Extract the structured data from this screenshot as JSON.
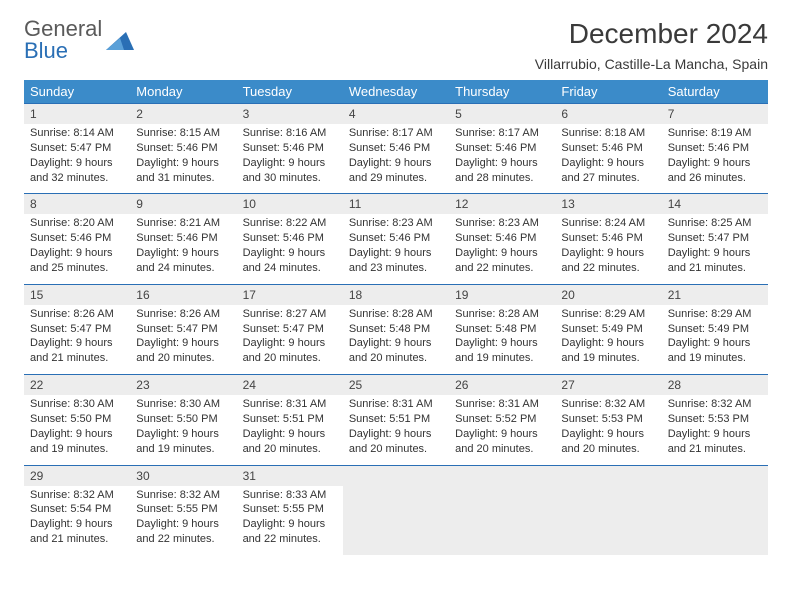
{
  "logo": {
    "line1": "General",
    "line2": "Blue"
  },
  "title": "December 2024",
  "location": "Villarrubio, Castille-La Mancha, Spain",
  "colors": {
    "header_bg": "#3b8bc9",
    "header_text": "#ffffff",
    "daynum_bg": "#ededed",
    "border_top": "#2a6fb5",
    "logo_blue": "#2a6fb5",
    "logo_gray": "#5a5a5a",
    "body_text": "#333333"
  },
  "fonts": {
    "title_size": 28,
    "location_size": 14,
    "header_size": 13,
    "daynum_size": 12,
    "cell_size": 11
  },
  "weekdays": [
    "Sunday",
    "Monday",
    "Tuesday",
    "Wednesday",
    "Thursday",
    "Friday",
    "Saturday"
  ],
  "weeks": [
    [
      {
        "n": "1",
        "sr": "Sunrise: 8:14 AM",
        "ss": "Sunset: 5:47 PM",
        "d1": "Daylight: 9 hours",
        "d2": "and 32 minutes."
      },
      {
        "n": "2",
        "sr": "Sunrise: 8:15 AM",
        "ss": "Sunset: 5:46 PM",
        "d1": "Daylight: 9 hours",
        "d2": "and 31 minutes."
      },
      {
        "n": "3",
        "sr": "Sunrise: 8:16 AM",
        "ss": "Sunset: 5:46 PM",
        "d1": "Daylight: 9 hours",
        "d2": "and 30 minutes."
      },
      {
        "n": "4",
        "sr": "Sunrise: 8:17 AM",
        "ss": "Sunset: 5:46 PM",
        "d1": "Daylight: 9 hours",
        "d2": "and 29 minutes."
      },
      {
        "n": "5",
        "sr": "Sunrise: 8:17 AM",
        "ss": "Sunset: 5:46 PM",
        "d1": "Daylight: 9 hours",
        "d2": "and 28 minutes."
      },
      {
        "n": "6",
        "sr": "Sunrise: 8:18 AM",
        "ss": "Sunset: 5:46 PM",
        "d1": "Daylight: 9 hours",
        "d2": "and 27 minutes."
      },
      {
        "n": "7",
        "sr": "Sunrise: 8:19 AM",
        "ss": "Sunset: 5:46 PM",
        "d1": "Daylight: 9 hours",
        "d2": "and 26 minutes."
      }
    ],
    [
      {
        "n": "8",
        "sr": "Sunrise: 8:20 AM",
        "ss": "Sunset: 5:46 PM",
        "d1": "Daylight: 9 hours",
        "d2": "and 25 minutes."
      },
      {
        "n": "9",
        "sr": "Sunrise: 8:21 AM",
        "ss": "Sunset: 5:46 PM",
        "d1": "Daylight: 9 hours",
        "d2": "and 24 minutes."
      },
      {
        "n": "10",
        "sr": "Sunrise: 8:22 AM",
        "ss": "Sunset: 5:46 PM",
        "d1": "Daylight: 9 hours",
        "d2": "and 24 minutes."
      },
      {
        "n": "11",
        "sr": "Sunrise: 8:23 AM",
        "ss": "Sunset: 5:46 PM",
        "d1": "Daylight: 9 hours",
        "d2": "and 23 minutes."
      },
      {
        "n": "12",
        "sr": "Sunrise: 8:23 AM",
        "ss": "Sunset: 5:46 PM",
        "d1": "Daylight: 9 hours",
        "d2": "and 22 minutes."
      },
      {
        "n": "13",
        "sr": "Sunrise: 8:24 AM",
        "ss": "Sunset: 5:46 PM",
        "d1": "Daylight: 9 hours",
        "d2": "and 22 minutes."
      },
      {
        "n": "14",
        "sr": "Sunrise: 8:25 AM",
        "ss": "Sunset: 5:47 PM",
        "d1": "Daylight: 9 hours",
        "d2": "and 21 minutes."
      }
    ],
    [
      {
        "n": "15",
        "sr": "Sunrise: 8:26 AM",
        "ss": "Sunset: 5:47 PM",
        "d1": "Daylight: 9 hours",
        "d2": "and 21 minutes."
      },
      {
        "n": "16",
        "sr": "Sunrise: 8:26 AM",
        "ss": "Sunset: 5:47 PM",
        "d1": "Daylight: 9 hours",
        "d2": "and 20 minutes."
      },
      {
        "n": "17",
        "sr": "Sunrise: 8:27 AM",
        "ss": "Sunset: 5:47 PM",
        "d1": "Daylight: 9 hours",
        "d2": "and 20 minutes."
      },
      {
        "n": "18",
        "sr": "Sunrise: 8:28 AM",
        "ss": "Sunset: 5:48 PM",
        "d1": "Daylight: 9 hours",
        "d2": "and 20 minutes."
      },
      {
        "n": "19",
        "sr": "Sunrise: 8:28 AM",
        "ss": "Sunset: 5:48 PM",
        "d1": "Daylight: 9 hours",
        "d2": "and 19 minutes."
      },
      {
        "n": "20",
        "sr": "Sunrise: 8:29 AM",
        "ss": "Sunset: 5:49 PM",
        "d1": "Daylight: 9 hours",
        "d2": "and 19 minutes."
      },
      {
        "n": "21",
        "sr": "Sunrise: 8:29 AM",
        "ss": "Sunset: 5:49 PM",
        "d1": "Daylight: 9 hours",
        "d2": "and 19 minutes."
      }
    ],
    [
      {
        "n": "22",
        "sr": "Sunrise: 8:30 AM",
        "ss": "Sunset: 5:50 PM",
        "d1": "Daylight: 9 hours",
        "d2": "and 19 minutes."
      },
      {
        "n": "23",
        "sr": "Sunrise: 8:30 AM",
        "ss": "Sunset: 5:50 PM",
        "d1": "Daylight: 9 hours",
        "d2": "and 19 minutes."
      },
      {
        "n": "24",
        "sr": "Sunrise: 8:31 AM",
        "ss": "Sunset: 5:51 PM",
        "d1": "Daylight: 9 hours",
        "d2": "and 20 minutes."
      },
      {
        "n": "25",
        "sr": "Sunrise: 8:31 AM",
        "ss": "Sunset: 5:51 PM",
        "d1": "Daylight: 9 hours",
        "d2": "and 20 minutes."
      },
      {
        "n": "26",
        "sr": "Sunrise: 8:31 AM",
        "ss": "Sunset: 5:52 PM",
        "d1": "Daylight: 9 hours",
        "d2": "and 20 minutes."
      },
      {
        "n": "27",
        "sr": "Sunrise: 8:32 AM",
        "ss": "Sunset: 5:53 PM",
        "d1": "Daylight: 9 hours",
        "d2": "and 20 minutes."
      },
      {
        "n": "28",
        "sr": "Sunrise: 8:32 AM",
        "ss": "Sunset: 5:53 PM",
        "d1": "Daylight: 9 hours",
        "d2": "and 21 minutes."
      }
    ],
    [
      {
        "n": "29",
        "sr": "Sunrise: 8:32 AM",
        "ss": "Sunset: 5:54 PM",
        "d1": "Daylight: 9 hours",
        "d2": "and 21 minutes."
      },
      {
        "n": "30",
        "sr": "Sunrise: 8:32 AM",
        "ss": "Sunset: 5:55 PM",
        "d1": "Daylight: 9 hours",
        "d2": "and 22 minutes."
      },
      {
        "n": "31",
        "sr": "Sunrise: 8:33 AM",
        "ss": "Sunset: 5:55 PM",
        "d1": "Daylight: 9 hours",
        "d2": "and 22 minutes."
      },
      null,
      null,
      null,
      null
    ]
  ]
}
